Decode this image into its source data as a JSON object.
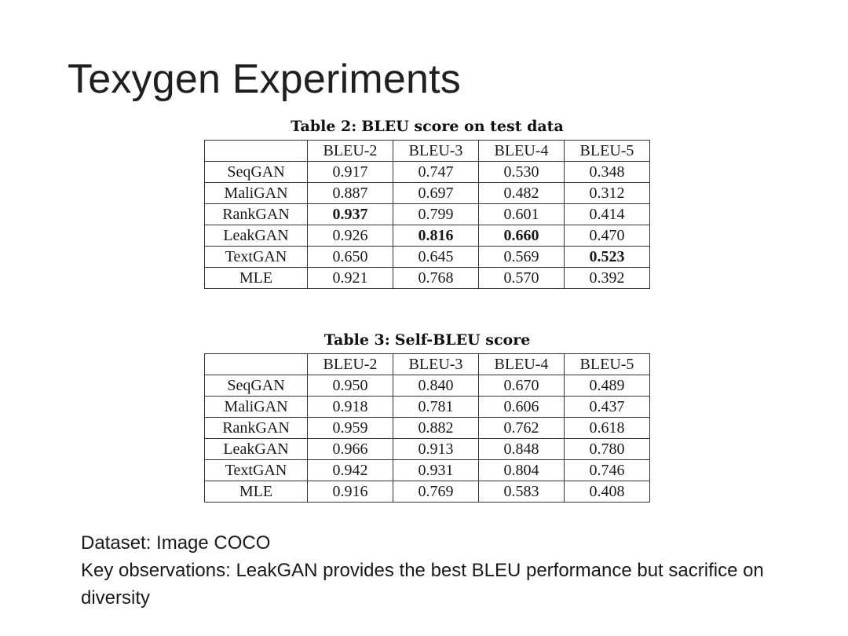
{
  "slide": {
    "title": "Texygen Experiments"
  },
  "tables": [
    {
      "caption_label": "Table 2:",
      "caption_text": "BLEU score on test data",
      "columns": [
        "",
        "BLEU-2",
        "BLEU-3",
        "BLEU-4",
        "BLEU-5"
      ],
      "rows": [
        {
          "model": "SeqGAN",
          "values": [
            "0.917",
            "0.747",
            "0.530",
            "0.348"
          ],
          "bold": [
            false,
            false,
            false,
            false
          ]
        },
        {
          "model": "MaliGAN",
          "values": [
            "0.887",
            "0.697",
            "0.482",
            "0.312"
          ],
          "bold": [
            false,
            false,
            false,
            false
          ]
        },
        {
          "model": "RankGAN",
          "values": [
            "0.937",
            "0.799",
            "0.601",
            "0.414"
          ],
          "bold": [
            true,
            false,
            false,
            false
          ]
        },
        {
          "model": "LeakGAN",
          "values": [
            "0.926",
            "0.816",
            "0.660",
            "0.470"
          ],
          "bold": [
            false,
            true,
            true,
            false
          ]
        },
        {
          "model": "TextGAN",
          "values": [
            "0.650",
            "0.645",
            "0.569",
            "0.523"
          ],
          "bold": [
            false,
            false,
            false,
            true
          ]
        },
        {
          "model": "MLE",
          "values": [
            "0.921",
            "0.768",
            "0.570",
            "0.392"
          ],
          "bold": [
            false,
            false,
            false,
            false
          ]
        }
      ]
    },
    {
      "caption_label": "Table 3:",
      "caption_text": "Self-BLEU score",
      "columns": [
        "",
        "BLEU-2",
        "BLEU-3",
        "BLEU-4",
        "BLEU-5"
      ],
      "rows": [
        {
          "model": "SeqGAN",
          "values": [
            "0.950",
            "0.840",
            "0.670",
            "0.489"
          ],
          "bold": [
            false,
            false,
            false,
            false
          ]
        },
        {
          "model": "MaliGAN",
          "values": [
            "0.918",
            "0.781",
            "0.606",
            "0.437"
          ],
          "bold": [
            false,
            false,
            false,
            false
          ]
        },
        {
          "model": "RankGAN",
          "values": [
            "0.959",
            "0.882",
            "0.762",
            "0.618"
          ],
          "bold": [
            false,
            false,
            false,
            false
          ]
        },
        {
          "model": "LeakGAN",
          "values": [
            "0.966",
            "0.913",
            "0.848",
            "0.780"
          ],
          "bold": [
            false,
            false,
            false,
            false
          ]
        },
        {
          "model": "TextGAN",
          "values": [
            "0.942",
            "0.931",
            "0.804",
            "0.746"
          ],
          "bold": [
            false,
            false,
            false,
            false
          ]
        },
        {
          "model": "MLE",
          "values": [
            "0.916",
            "0.769",
            "0.583",
            "0.408"
          ],
          "bold": [
            false,
            false,
            false,
            false
          ]
        }
      ]
    }
  ],
  "notes": {
    "dataset": "Dataset: Image COCO",
    "observations": "Key observations: LeakGAN provides the best BLEU performance but sacrifice on diversity"
  }
}
